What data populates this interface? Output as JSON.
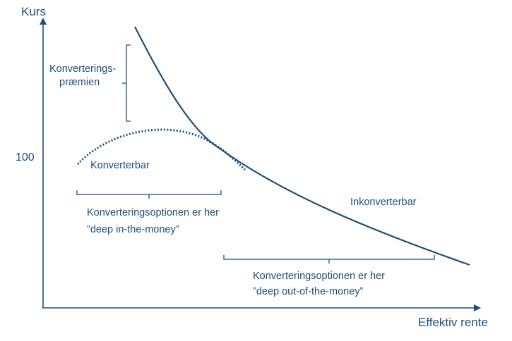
{
  "axes": {
    "y_label": "Kurs",
    "x_label": "Effektiv rente",
    "y_tick": "100"
  },
  "labels": {
    "premium_line1": "Konverterings-",
    "premium_line2": "præmien",
    "convertible": "Konverterbar",
    "nonconvertible": "Inkonverterbar",
    "itm_line1": "Konverteringsoptionen er her",
    "itm_line2": "”deep in-the-money”",
    "otm_line1": "Konverteringsoptionen er her",
    "otm_line2": "”deep out-of-the-money”"
  },
  "colors": {
    "line": "#1f4e79",
    "text": "#1f4e79"
  }
}
